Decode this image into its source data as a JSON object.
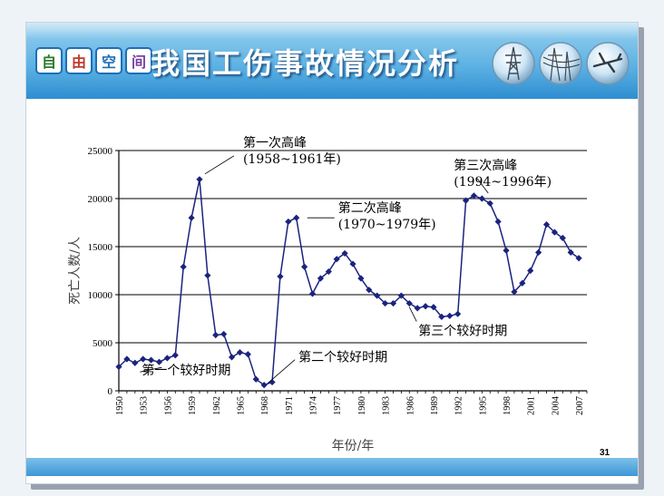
{
  "slide": {
    "title": "我国工伤事故情况分析",
    "logo_chars": [
      "自",
      "由",
      "空",
      "间"
    ],
    "page_number": "31",
    "colors": {
      "header_top": "#9bd0ef",
      "header_bottom": "#2f8ed0",
      "series": "#1a237e"
    },
    "decor_icons": [
      "power-tower-icon",
      "power-lines-icon",
      "airplane-icon"
    ]
  },
  "chart_data": {
    "type": "line",
    "title": "",
    "xlabel": "年份/年",
    "ylabel": "死亡人数/人",
    "xlim": [
      1950,
      2008
    ],
    "ylim": [
      0,
      25000
    ],
    "grid": true,
    "x_ticks": [
      "1950",
      "1953",
      "1956",
      "1959",
      "1962",
      "1965",
      "1968",
      "1971",
      "1974",
      "1977",
      "1980",
      "1983",
      "1986",
      "1989",
      "1992",
      "1995",
      "1998",
      "2001",
      "2004",
      "2007"
    ],
    "y_ticks": [
      "0",
      "5000",
      "10000",
      "15000",
      "20000",
      "25000"
    ],
    "series": [
      {
        "name": "",
        "x": [
          1950,
          1951,
          1952,
          1953,
          1954,
          1955,
          1956,
          1957,
          1958,
          1959,
          1960,
          1961,
          1962,
          1963,
          1964,
          1965,
          1966,
          1967,
          1968,
          1969,
          1970,
          1971,
          1972,
          1973,
          1974,
          1975,
          1976,
          1977,
          1978,
          1979,
          1980,
          1981,
          1982,
          1983,
          1984,
          1985,
          1986,
          1987,
          1988,
          1989,
          1990,
          1991,
          1992,
          1993,
          1994,
          1995,
          1996,
          1997,
          1998,
          1999,
          2000,
          2001,
          2002,
          2003,
          2004,
          2005,
          2006,
          2007
        ],
        "y": [
          2500,
          3300,
          2900,
          3300,
          3200,
          3000,
          3400,
          3700,
          12900,
          18000,
          22000,
          12000,
          5800,
          5900,
          3500,
          4000,
          3800,
          1200,
          600,
          900,
          11900,
          17600,
          18000,
          12900,
          10100,
          11700,
          12400,
          13700,
          14300,
          13200,
          11700,
          10500,
          9900,
          9100,
          9100,
          9900,
          9100,
          8600,
          8800,
          8700,
          7700,
          7800,
          8000,
          19800,
          20300,
          20000,
          19500,
          17600,
          14600,
          10300,
          11200,
          12500,
          14400,
          17300,
          16500,
          15900,
          14400,
          13800
        ]
      }
    ],
    "annotations": [
      {
        "lines": [
          "第一次高峰",
          "(1958~1961年)"
        ],
        "x": 1960,
        "y": 22000
      },
      {
        "lines": [
          "第二次高峰",
          "(1970~1979年)"
        ],
        "x": 1972,
        "y": 18000
      },
      {
        "lines": [
          "第三次高峰",
          "(1994~1996年)"
        ],
        "x": 1996,
        "y": 20000
      },
      {
        "lines": [
          "第一个较好时期"
        ],
        "x": 1956,
        "y": 3000
      },
      {
        "lines": [
          "第二个较好时期"
        ],
        "x": 1968,
        "y": 600
      },
      {
        "lines": [
          "第三个较好时期"
        ],
        "x": 1986,
        "y": 9100
      }
    ]
  }
}
